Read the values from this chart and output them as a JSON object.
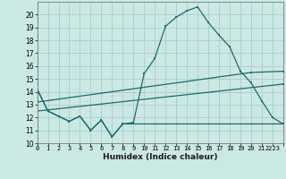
{
  "xlabel": "Humidex (Indice chaleur)",
  "bg_color": "#cce8e4",
  "grid_color": "#aacccc",
  "line_color": "#1a6b6b",
  "xlim": [
    0,
    23
  ],
  "ylim": [
    10,
    21
  ],
  "yticks": [
    10,
    11,
    12,
    13,
    14,
    15,
    16,
    17,
    18,
    19,
    20
  ],
  "xticks": [
    0,
    1,
    2,
    3,
    4,
    5,
    6,
    7,
    8,
    9,
    10,
    11,
    12,
    13,
    14,
    15,
    16,
    17,
    18,
    19,
    20,
    21,
    22,
    23
  ],
  "xtick_labels": [
    "0",
    "1",
    "2",
    "3",
    "4",
    "5",
    "6",
    "7",
    "8",
    "9",
    "10",
    "11",
    "12",
    "13",
    "14",
    "15",
    "16",
    "17",
    "18",
    "19",
    "20",
    "21",
    "2223",
    ""
  ],
  "curve1_x": [
    0,
    1,
    2,
    3,
    4,
    5,
    6,
    7,
    8,
    9,
    10,
    11,
    12,
    13,
    14,
    15,
    16,
    17,
    18,
    19,
    20,
    21,
    22,
    23
  ],
  "curve1_y": [
    14.2,
    12.5,
    12.1,
    11.7,
    12.1,
    11.0,
    11.8,
    10.5,
    11.5,
    11.6,
    15.4,
    16.6,
    19.1,
    19.8,
    20.3,
    20.6,
    19.4,
    18.4,
    17.5,
    15.6,
    14.7,
    13.3,
    12.0,
    11.5
  ],
  "curve2_x": [
    0,
    1,
    2,
    3,
    4,
    5,
    6,
    7,
    8,
    9,
    10,
    11,
    12,
    13,
    14,
    15,
    16,
    17,
    18,
    19,
    20,
    21,
    22,
    23
  ],
  "curve2_y": [
    14.2,
    12.5,
    12.1,
    11.7,
    12.1,
    11.0,
    11.8,
    10.5,
    11.5,
    11.5,
    11.5,
    11.5,
    11.5,
    11.5,
    11.5,
    11.5,
    11.5,
    11.5,
    11.5,
    11.5,
    11.5,
    11.5,
    11.5,
    11.5
  ],
  "line3_x": [
    0,
    23
  ],
  "line3_y": [
    12.5,
    14.6
  ],
  "line4_x": [
    0,
    20,
    23
  ],
  "line4_y": [
    13.2,
    15.5,
    15.6
  ]
}
